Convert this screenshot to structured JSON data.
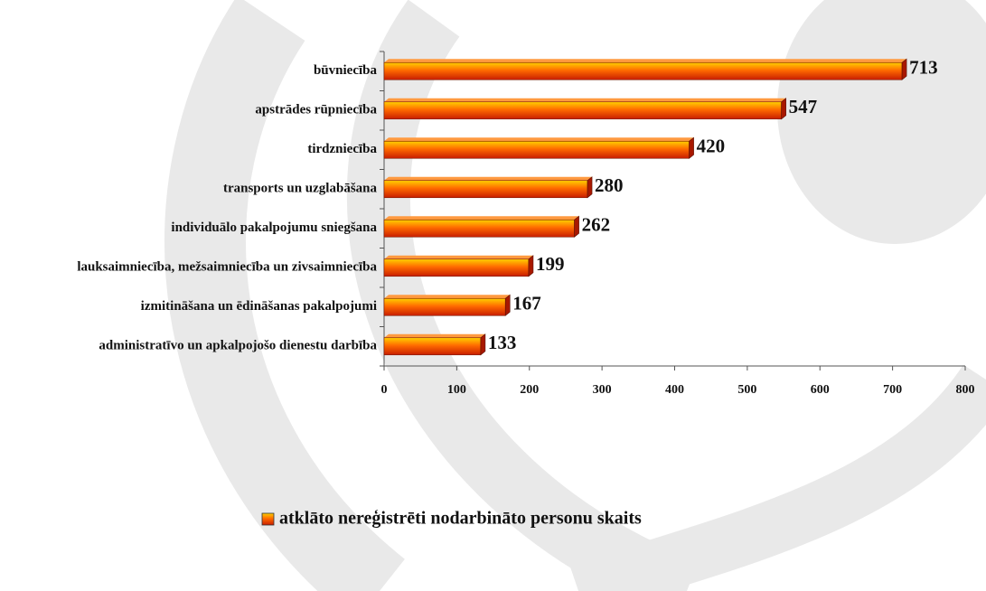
{
  "chart_data": {
    "type": "bar",
    "horizontal": true,
    "categories": [
      "būvniecība",
      "apstrādes rūpniecība",
      "tirdzniecība",
      "transports un uzglabāšana",
      "individuālo pakalpojumu sniegšana",
      "lauksaimniecība,  mežsaimniecība un zivsaimniecība",
      "izmitināšana un ēdināšanas pakalpojumi",
      "administratīvo un apkalpojošo dienestu darbība"
    ],
    "series": [
      {
        "name": "atklāto nereģistrēti nodarbināto personu skaits",
        "color": "#ff5a00",
        "values": [
          713,
          547,
          420,
          280,
          262,
          199,
          167,
          133
        ]
      }
    ],
    "xlim": [
      0,
      800
    ],
    "xticks": [
      0,
      100,
      200,
      300,
      400,
      500,
      600,
      700,
      800
    ],
    "legend": "bottom"
  }
}
